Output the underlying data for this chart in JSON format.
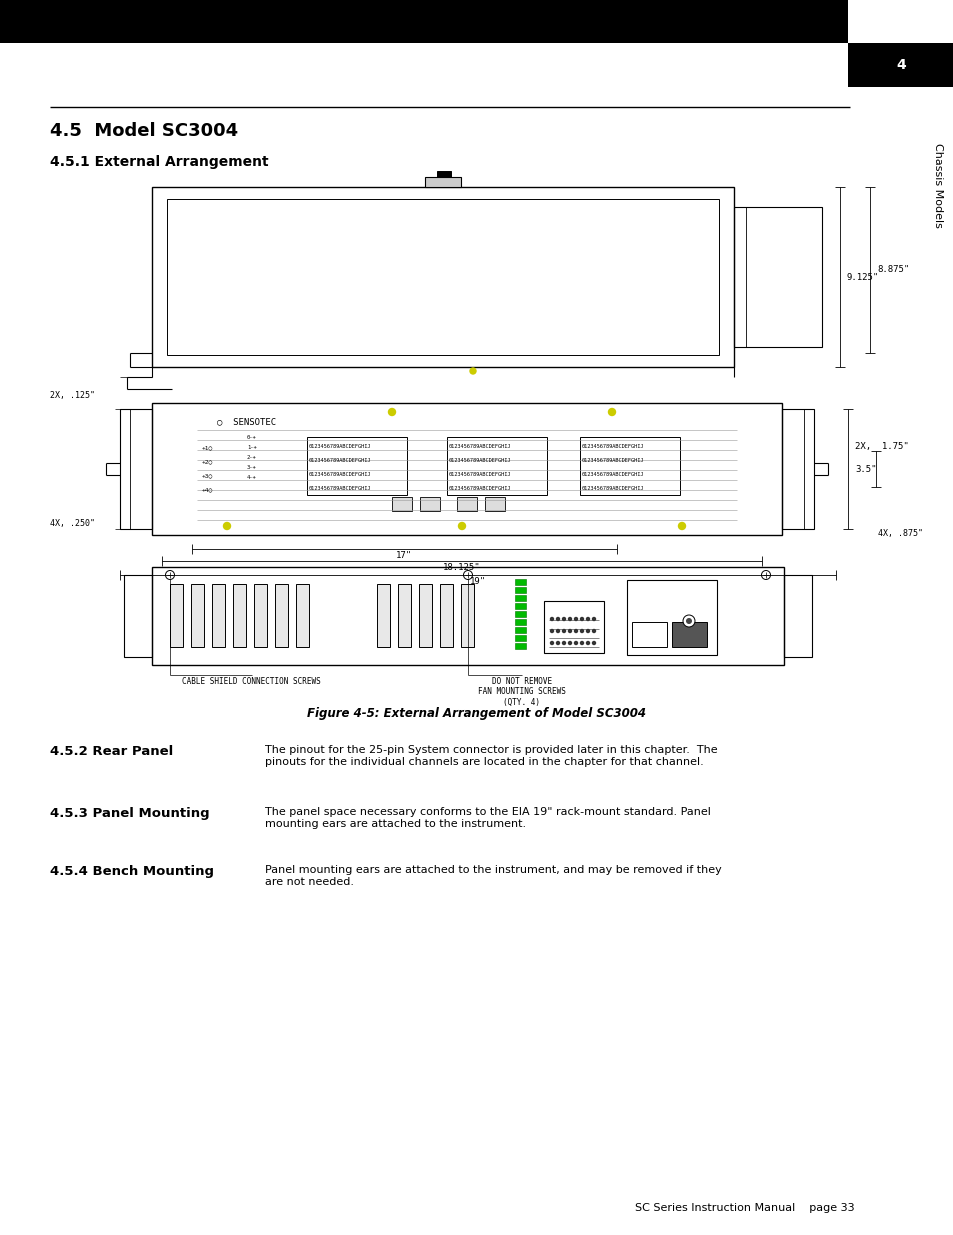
{
  "page_bg": "#ffffff",
  "section_title": "4.5  Model SC3004",
  "subsection_title": "4.5.1 External Arrangement",
  "figure_caption": "Figure 4-5: External Arrangement of Model SC3004",
  "section_52_title": "4.5.2 Rear Panel",
  "section_52_text": "The pinout for the 25-pin System connector is provided later in this chapter.  The\npinouts for the individual channels are located in the chapter for that channel.",
  "section_53_title": "4.5.3 Panel Mounting",
  "section_53_text": "The panel space necessary conforms to the EIA 19\" rack-mount standard. Panel\nmounting ears are attached to the instrument.",
  "section_54_title": "4.5.4 Bench Mounting",
  "section_54_text": "Panel mounting ears are attached to the instrument, and may be removed if they\nare not needed.",
  "footer_left": "SC Series Instruction Manual",
  "footer_right": "page 33",
  "dim_9125": "9.125\"",
  "dim_8875": "8.875\"",
  "dim_35": "3.5\"",
  "dim_2x125": "2X, .125\"",
  "dim_2x175": "2X,  1.75\"",
  "dim_4x250": "4X, .250\"",
  "dim_4x875": "4X, .875\"",
  "dim_17": "17\"",
  "dim_18125": "18.125\"",
  "dim_19": "19\"",
  "cable_label": "CABLE SHIELD CONNECTION SCREWS",
  "fan_label": "DO NOT REMOVE\nFAN MOUNTING SCREWS\n(QTY. 4)",
  "sensotec_label": "○  SENSOTEC"
}
